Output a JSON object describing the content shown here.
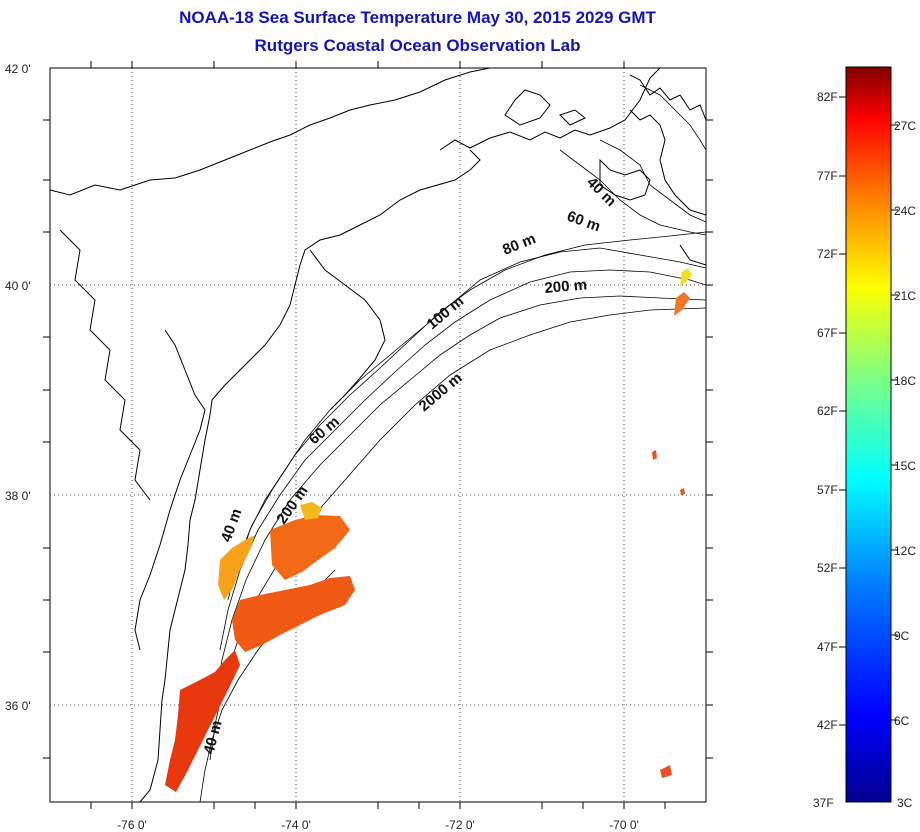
{
  "title": {
    "line1": "NOAA-18 Sea Surface Temperature May 30, 2015 2029 GMT",
    "line2": "Rutgers Coastal Ocean Observation Lab"
  },
  "map": {
    "lat_labels": [
      "42 0'",
      "40 0'",
      "38 0'",
      "36 0'"
    ],
    "lon_labels": [
      "-76 0'",
      "-74 0'",
      "-72 0'",
      "-70 0'"
    ],
    "lat_range": [
      35.0,
      42.0
    ],
    "lon_range": [
      -77.0,
      -69.0
    ],
    "grid": true,
    "depth_labels": [
      "40 m",
      "60 m",
      "80 m",
      "200 m",
      "100 m",
      "2000 m",
      "60 m",
      "200 m",
      "40 m",
      "40 m"
    ]
  },
  "colorbar": {
    "f_labels": [
      "82F",
      "77F",
      "72F",
      "67F",
      "62F",
      "57F",
      "52F",
      "47F",
      "42F",
      "37F"
    ],
    "c_labels": [
      "27C",
      "24C",
      "21C",
      "18C",
      "15C",
      "12C",
      "9C",
      "6C",
      "3C"
    ],
    "colors": [
      "#7f0000",
      "#ff0000",
      "#ff8000",
      "#ffff00",
      "#80ff80",
      "#00ffff",
      "#0080ff",
      "#0000ff",
      "#00008f"
    ]
  }
}
